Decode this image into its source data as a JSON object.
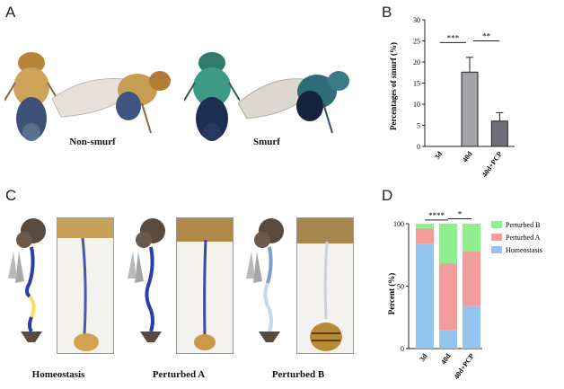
{
  "panels": {
    "A": {
      "letter": "A",
      "label_left": "Non-smurf",
      "label_right": "Smurf"
    },
    "B": {
      "letter": "B"
    },
    "C": {
      "letter": "C",
      "labels": [
        "Homeostasis",
        "Perturbed A",
        "Perturbed B"
      ]
    },
    "D": {
      "letter": "D"
    }
  },
  "colors": {
    "bar_3d": "#b7b7b7",
    "bar_40d": "#a3a3a9",
    "bar_pcp": "#6f6f77",
    "perturbed_b": "#8ff08f",
    "perturbed_a": "#f39c9c",
    "homeostasis": "#93c4ef",
    "gut_blue": "#2a3fa8",
    "gut_yellow": "#f2e45a"
  },
  "chart_data": [
    {
      "type": "bar",
      "title": "",
      "ylabel": "Percentages of smurf (%)",
      "xlabel": "",
      "categories": [
        "3d",
        "40d",
        "40d+PCP"
      ],
      "values": [
        0,
        17.6,
        6.0
      ],
      "errors": [
        0,
        3.5,
        2.0
      ],
      "ylim": [
        0,
        30
      ],
      "yticks": [
        "0",
        "5",
        "10",
        "15",
        "20",
        "25",
        "30"
      ],
      "significance": [
        {
          "from": 0,
          "to": 1,
          "label": "***"
        },
        {
          "from": 1,
          "to": 2,
          "label": "**"
        }
      ]
    },
    {
      "type": "bar",
      "stacked": true,
      "title": "",
      "ylabel": "Percent (%)",
      "xlabel": "",
      "categories": [
        "3d",
        "40d",
        "40d+PCP"
      ],
      "series": [
        {
          "name": "Homeostasis",
          "values": [
            84,
            15,
            34
          ]
        },
        {
          "name": "Perturbed A",
          "values": [
            12,
            53,
            44
          ]
        },
        {
          "name": "Perturbed B",
          "values": [
            4,
            32,
            22
          ]
        }
      ],
      "legend_order": [
        "Perturbed B",
        "Perturbed A",
        "Homeostasis"
      ],
      "ylim": [
        0,
        100
      ],
      "yticks": [
        "0",
        "50",
        "100"
      ],
      "significance": [
        {
          "from": 0,
          "to": 1,
          "label": "****"
        },
        {
          "from": 1,
          "to": 2,
          "label": "*"
        }
      ]
    }
  ]
}
